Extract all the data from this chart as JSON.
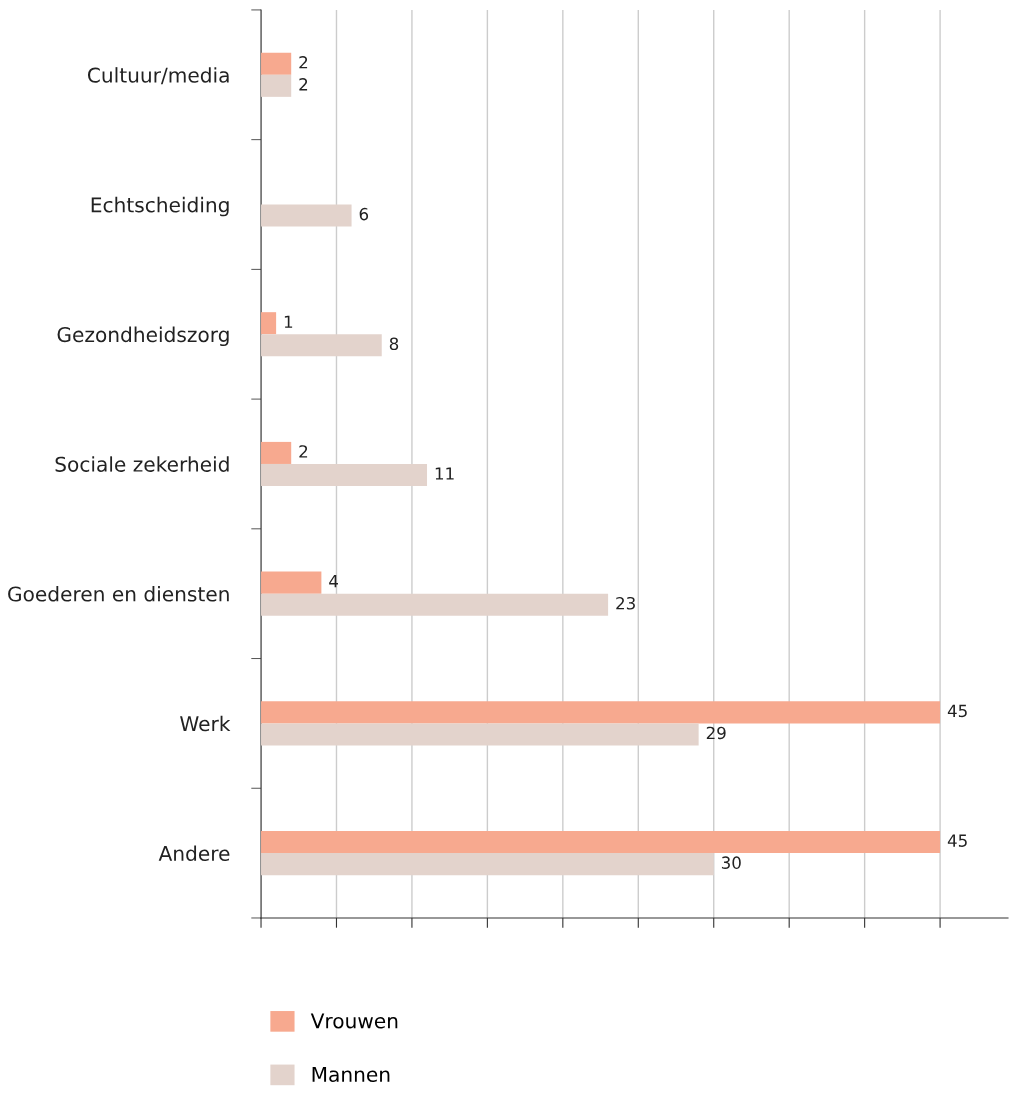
{
  "chart_data": {
    "type": "bar",
    "orientation": "horizontal",
    "categories": [
      "Cultuur/media",
      "Echtscheiding",
      "Gezondheidszorg",
      "Sociale zekerheid",
      "Goederen en diensten",
      "Werk",
      "Andere"
    ],
    "series": [
      {
        "name": "Vrouwen",
        "color": "#f7a98f",
        "values": [
          2,
          null,
          1,
          2,
          4,
          45,
          45
        ]
      },
      {
        "name": "Mannen",
        "color": "#e3d3cc",
        "values": [
          2,
          6,
          8,
          11,
          23,
          29,
          30
        ]
      }
    ],
    "xlim": [
      0,
      49.5
    ],
    "xticks": [
      {
        "value": 0,
        "label": null
      },
      {
        "value": 5,
        "label": null
      },
      {
        "value": 10,
        "label": null
      },
      {
        "value": 15,
        "label": null
      },
      {
        "value": 20,
        "label": null
      },
      {
        "value": 25,
        "label": null
      },
      {
        "value": 30,
        "label": null
      },
      {
        "value": 35,
        "label": null
      },
      {
        "value": 40,
        "label": null
      },
      {
        "value": 45,
        "label": null
      }
    ],
    "grid": "x",
    "legend": "bottom left",
    "data_labels": true
  }
}
